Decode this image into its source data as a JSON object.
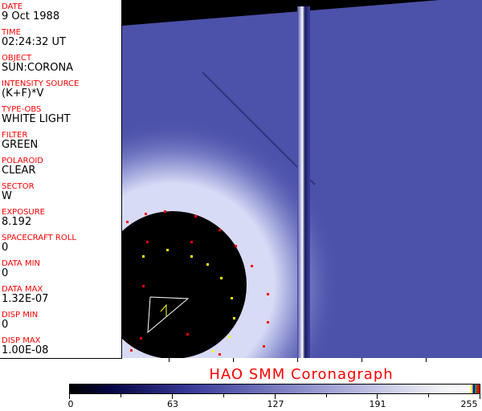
{
  "fields": [
    {
      "label": "DATE",
      "value": "9 Oct 1988"
    },
    {
      "label": "TIME",
      "value": "02:24:32 UT"
    },
    {
      "label": "OBJECT",
      "value": "SUN:CORONA"
    },
    {
      "label": "INTENSITY SOURCE",
      "value": "(K+F)*V"
    },
    {
      "label": "TYPE-OBS",
      "value": "WHITE LIGHT"
    },
    {
      "label": "FILTER",
      "value": "GREEN"
    },
    {
      "label": "POLAROID",
      "value": "CLEAR"
    },
    {
      "label": "SECTOR",
      "value": "W"
    },
    {
      "label": "EXPOSURE",
      "value": "8.192"
    },
    {
      "label": "SPACECRAFT ROLL",
      "value": "0"
    },
    {
      "label": "DATA MIN",
      "value": "0"
    },
    {
      "label": "DATA MAX",
      "value": "1.32E-07"
    },
    {
      "label": "DISP MIN",
      "value": "0"
    },
    {
      "label": "DISP MAX",
      "value": "1.00E-08"
    }
  ],
  "title": "HAO  SMM Coronagraph",
  "colorbar": {
    "ticks": [
      "0",
      "63",
      "127",
      "191",
      "255"
    ],
    "colors": {
      "low": "#000000",
      "mid": "#8789c8",
      "high": "#f8f8f8"
    }
  },
  "colors": {
    "label": "#ff0000",
    "marker_red": "#ff0000",
    "marker_yellow": "#ffff00"
  }
}
